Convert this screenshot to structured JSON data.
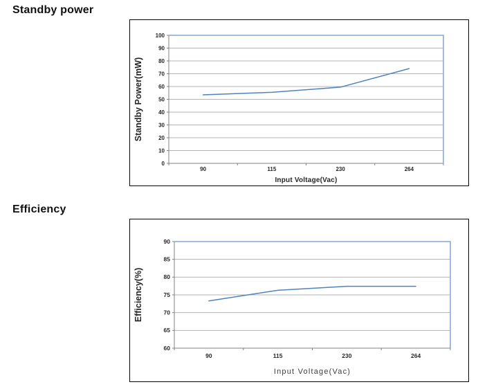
{
  "page_background": "#ffffff",
  "chart_data": [
    {
      "type": "line",
      "title": "Standby power",
      "categories": [
        "90",
        "115",
        "230",
        "264"
      ],
      "series": [
        {
          "name": "Standby Power",
          "values": [
            53.5,
            55.5,
            59.5,
            74
          ]
        }
      ],
      "xlabel": "Input Voltage(Vac)",
      "ylabel": "Standby Power(mW)",
      "ylim": [
        0,
        100
      ],
      "ytick_step": 10,
      "grid": true,
      "legend": false,
      "colors": {
        "line": "#4f81bd",
        "plot_border": "#95b3d7",
        "gridline": "#b3b3b3",
        "axis": "#808080",
        "text": "#262626",
        "xlabel_text": "#262626"
      }
    },
    {
      "type": "line",
      "title": "Efficiency",
      "categories": [
        "90",
        "115",
        "230",
        "264"
      ],
      "series": [
        {
          "name": "Efficiency",
          "values": [
            73.3,
            76.3,
            77.4,
            77.4
          ]
        }
      ],
      "xlabel": "Input Voltage(Vac)",
      "ylabel": "Efficiency(%)",
      "ylim": [
        60,
        90
      ],
      "ytick_step": 5,
      "grid": true,
      "legend": false,
      "colors": {
        "line": "#4f81bd",
        "plot_border": "#95b3d7",
        "gridline": "#b3b3b3",
        "axis": "#808080",
        "text": "#262626",
        "xlabel_text": "#3d3d3d"
      }
    }
  ]
}
